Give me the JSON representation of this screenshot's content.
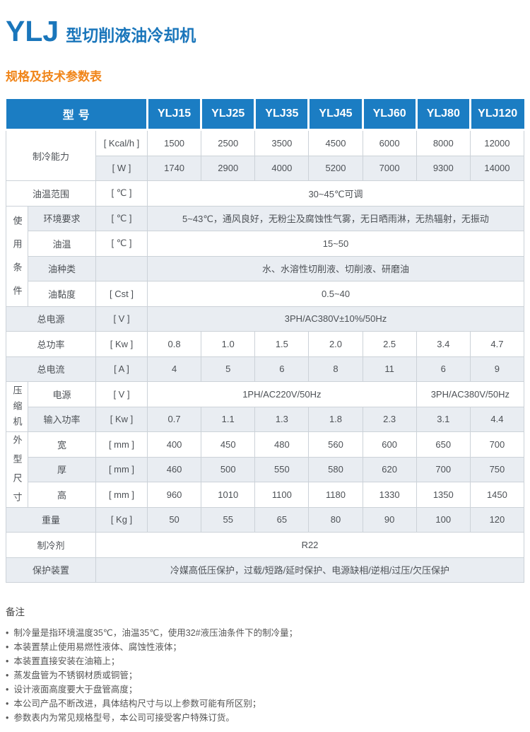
{
  "header": {
    "model": "YLJ",
    "title": "型切削液油冷却机",
    "subtitle": "规格及技术参数表"
  },
  "colors": {
    "title_blue": "#1a76bb",
    "table_header_blue": "#1b7dc3",
    "subtitle_orange": "#f08519",
    "stripe_gray": "#e9edf2",
    "border_gray": "#ccd2d8"
  },
  "table": {
    "corner_label": "型号",
    "models": [
      "YLJ15",
      "YLJ25",
      "YLJ35",
      "YLJ45",
      "YLJ60",
      "YLJ80",
      "YLJ120"
    ],
    "rows": {
      "cooling_capacity": {
        "label": "制冷能力",
        "kcal": {
          "unit": "[ Kcal/h ]",
          "values": [
            "1500",
            "2500",
            "3500",
            "4500",
            "6000",
            "8000",
            "12000"
          ]
        },
        "w": {
          "unit": "[ W ]",
          "values": [
            "1740",
            "2900",
            "4000",
            "5200",
            "7000",
            "9300",
            "14000"
          ]
        }
      },
      "oil_temp_range": {
        "label": "油温范围",
        "unit": "[ ℃ ]",
        "value": "30~45℃可调"
      },
      "usage_group": {
        "label": "使用条件",
        "environment": {
          "label": "环境要求",
          "unit": "[ ℃ ]",
          "value": "5~43℃，通风良好，无粉尘及腐蚀性气雾，无日晒雨淋，无热辐射，无振动"
        },
        "oil_temp": {
          "label": "油温",
          "unit": "[ ℃ ]",
          "value": "15~50"
        },
        "oil_type": {
          "label": "油种类",
          "unit": "",
          "value": "水、水溶性切削液、切削液、研磨油"
        },
        "oil_viscosity": {
          "label": "油黏度",
          "unit": "[ Cst ]",
          "value": "0.5~40"
        }
      },
      "total_power_supply": {
        "label": "总电源",
        "unit": "[ V ]",
        "value": "3PH/AC380V±10%/50Hz"
      },
      "total_power": {
        "label": "总功率",
        "unit": "[ Kw ]",
        "values": [
          "0.8",
          "1.0",
          "1.5",
          "2.0",
          "2.5",
          "3.4",
          "4.7"
        ]
      },
      "total_current": {
        "label": "总电流",
        "unit": "[ A ]",
        "values": [
          "4",
          "5",
          "6",
          "8",
          "11",
          "6",
          "9"
        ]
      },
      "compressor_group": {
        "label": "压缩机",
        "power_supply": {
          "label": "电源",
          "unit": "[ V ]",
          "value_1ph": "1PH/AC220V/50Hz",
          "value_3ph": "3PH/AC380V/50Hz"
        },
        "input_power": {
          "label": "输入功率",
          "unit": "[ Kw ]",
          "values": [
            "0.7",
            "1.1",
            "1.3",
            "1.8",
            "2.3",
            "3.1",
            "4.4"
          ]
        }
      },
      "dimensions_group": {
        "label": "外型尺寸",
        "width": {
          "label": "宽",
          "unit": "[ mm ]",
          "values": [
            "400",
            "450",
            "480",
            "560",
            "600",
            "650",
            "700"
          ]
        },
        "depth": {
          "label": "厚",
          "unit": "[ mm ]",
          "values": [
            "460",
            "500",
            "550",
            "580",
            "620",
            "700",
            "750"
          ]
        },
        "height": {
          "label": "高",
          "unit": "[ mm ]",
          "values": [
            "960",
            "1010",
            "1100",
            "1180",
            "1330",
            "1350",
            "1450"
          ]
        }
      },
      "weight": {
        "label": "重量",
        "unit": "[ Kg ]",
        "values": [
          "50",
          "55",
          "65",
          "80",
          "90",
          "100",
          "120"
        ]
      },
      "refrigerant": {
        "label": "制冷剂",
        "value": "R22"
      },
      "protection": {
        "label": "保护装置",
        "value": "冷媒高低压保护，过载/短路/延时保护、电源缺相/逆相/过压/欠压保护"
      }
    }
  },
  "notes": {
    "heading": "备注",
    "bullet": "•",
    "items": [
      "制冷量是指环境温度35℃，油温35℃，使用32#液压油条件下的制冷量；",
      "本装置禁止使用易燃性液体、腐蚀性液体；",
      "本装置直接安装在油箱上；",
      "蒸发盘管为不锈钢材质或铜管；",
      "设计液面高度要大于盘管高度；",
      "本公司产品不断改进，具体结构尺寸与以上参数可能有所区别；",
      "参数表内为常见规格型号，本公司可接受客户特殊订货。"
    ]
  }
}
